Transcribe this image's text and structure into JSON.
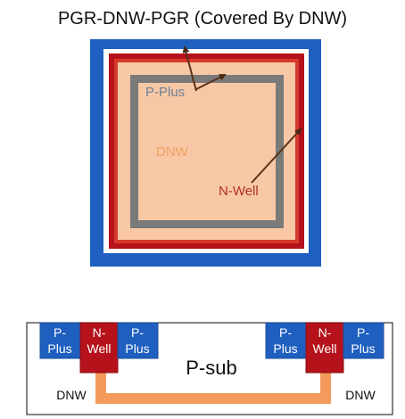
{
  "title": "PGR-DNW-PGR (Covered By DNW)",
  "top_view": {
    "labels": {
      "p_plus": "P-Plus",
      "dnw": "DNW",
      "n_well": "N-Well"
    }
  },
  "cross_section": {
    "p_sub": "P-sub",
    "dnw_left": "DNW",
    "dnw_right": "DNW",
    "left_pplus_outer": [
      "P-",
      "Plus"
    ],
    "left_nwell": [
      "N-",
      "Well"
    ],
    "left_pplus_inner": [
      "P-",
      "Plus"
    ],
    "right_pplus_inner": [
      "P-",
      "Plus"
    ],
    "right_nwell": [
      "N-",
      "Well"
    ],
    "right_pplus_outer": [
      "P-",
      "Plus"
    ]
  },
  "colors": {
    "p_plus": "#1f5fbf",
    "p_plus_dark": "#1d4e9a",
    "n_well": "#b5121b",
    "n_well_dark": "#8a0e14",
    "dnw_fill": "#f8c8a6",
    "dnw_bar": "#f39a5c",
    "gray_ring": "#7a7a7a",
    "arrow": "#6b3a1e",
    "p_plus_label": "#6d7f96",
    "dnw_label": "#f0a060",
    "n_well_label": "#b03020"
  }
}
